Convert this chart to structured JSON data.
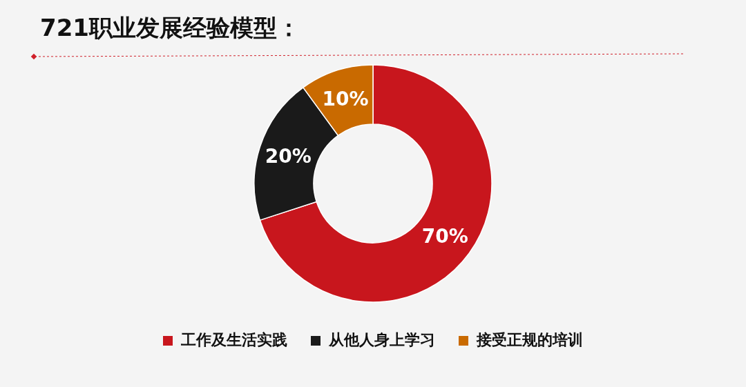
{
  "chart_data": {
    "type": "donut",
    "title": "721职业发展经验模型：",
    "categories": [
      "工作及生活实践",
      "从他人身上学习",
      "接受正规的培训"
    ],
    "values": [
      70,
      20,
      10
    ],
    "colors": [
      "#c8161d",
      "#1a1a1a",
      "#c96a00"
    ],
    "value_labels": [
      "70%",
      "20%",
      "10%"
    ],
    "legend": "bottom"
  }
}
